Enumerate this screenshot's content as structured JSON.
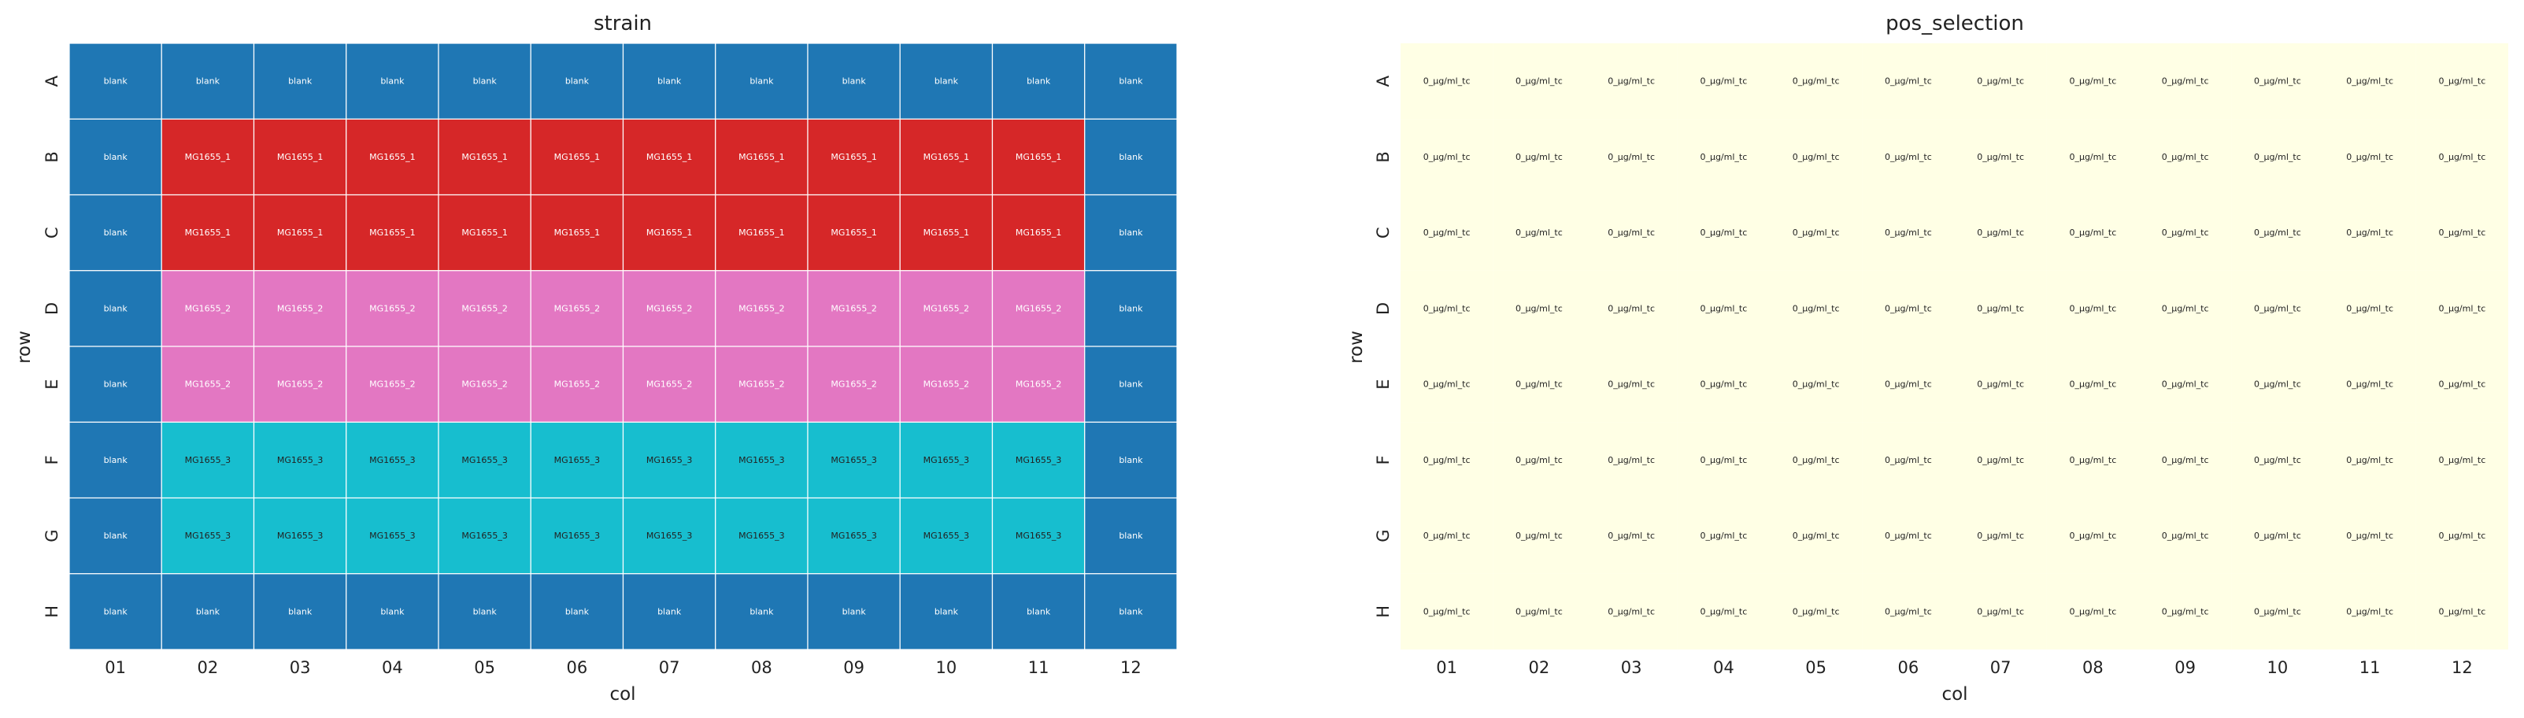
{
  "colors": {
    "blank": "#1f77b4",
    "MG1655_1": "#d62728",
    "MG1655_2": "#e377c2",
    "MG1655_3": "#17becf",
    "pos_cell": "#ffffe5",
    "grid_line": "#ffffff"
  },
  "text_colors": {
    "blank": "#ffffff",
    "MG1655_1": "#ffffff",
    "MG1655_2": "#ffffff",
    "MG1655_3": "#222222",
    "pos": "#222222"
  },
  "chart_data": [
    {
      "type": "heatmap",
      "title": "strain",
      "xlabel": "col",
      "ylabel": "row",
      "x_ticks": [
        "01",
        "02",
        "03",
        "04",
        "05",
        "06",
        "07",
        "08",
        "09",
        "10",
        "11",
        "12"
      ],
      "y_ticks": [
        "A",
        "B",
        "C",
        "D",
        "E",
        "F",
        "G",
        "H"
      ],
      "grid": true,
      "cells": [
        [
          "blank",
          "blank",
          "blank",
          "blank",
          "blank",
          "blank",
          "blank",
          "blank",
          "blank",
          "blank",
          "blank",
          "blank"
        ],
        [
          "blank",
          "MG1655_1",
          "MG1655_1",
          "MG1655_1",
          "MG1655_1",
          "MG1655_1",
          "MG1655_1",
          "MG1655_1",
          "MG1655_1",
          "MG1655_1",
          "MG1655_1",
          "blank"
        ],
        [
          "blank",
          "MG1655_1",
          "MG1655_1",
          "MG1655_1",
          "MG1655_1",
          "MG1655_1",
          "MG1655_1",
          "MG1655_1",
          "MG1655_1",
          "MG1655_1",
          "MG1655_1",
          "blank"
        ],
        [
          "blank",
          "MG1655_2",
          "MG1655_2",
          "MG1655_2",
          "MG1655_2",
          "MG1655_2",
          "MG1655_2",
          "MG1655_2",
          "MG1655_2",
          "MG1655_2",
          "MG1655_2",
          "blank"
        ],
        [
          "blank",
          "MG1655_2",
          "MG1655_2",
          "MG1655_2",
          "MG1655_2",
          "MG1655_2",
          "MG1655_2",
          "MG1655_2",
          "MG1655_2",
          "MG1655_2",
          "MG1655_2",
          "blank"
        ],
        [
          "blank",
          "MG1655_3",
          "MG1655_3",
          "MG1655_3",
          "MG1655_3",
          "MG1655_3",
          "MG1655_3",
          "MG1655_3",
          "MG1655_3",
          "MG1655_3",
          "MG1655_3",
          "blank"
        ],
        [
          "blank",
          "MG1655_3",
          "MG1655_3",
          "MG1655_3",
          "MG1655_3",
          "MG1655_3",
          "MG1655_3",
          "MG1655_3",
          "MG1655_3",
          "MG1655_3",
          "MG1655_3",
          "blank"
        ],
        [
          "blank",
          "blank",
          "blank",
          "blank",
          "blank",
          "blank",
          "blank",
          "blank",
          "blank",
          "blank",
          "blank",
          "blank"
        ]
      ]
    },
    {
      "type": "heatmap",
      "title": "pos_selection",
      "xlabel": "col",
      "ylabel": "row",
      "x_ticks": [
        "01",
        "02",
        "03",
        "04",
        "05",
        "06",
        "07",
        "08",
        "09",
        "10",
        "11",
        "12"
      ],
      "y_ticks": [
        "A",
        "B",
        "C",
        "D",
        "E",
        "F",
        "G",
        "H"
      ],
      "grid": false,
      "cells": [
        [
          "0_µg/ml_tc",
          "0_µg/ml_tc",
          "0_µg/ml_tc",
          "0_µg/ml_tc",
          "0_µg/ml_tc",
          "0_µg/ml_tc",
          "0_µg/ml_tc",
          "0_µg/ml_tc",
          "0_µg/ml_tc",
          "0_µg/ml_tc",
          "0_µg/ml_tc",
          "0_µg/ml_tc"
        ],
        [
          "0_µg/ml_tc",
          "0_µg/ml_tc",
          "0_µg/ml_tc",
          "0_µg/ml_tc",
          "0_µg/ml_tc",
          "0_µg/ml_tc",
          "0_µg/ml_tc",
          "0_µg/ml_tc",
          "0_µg/ml_tc",
          "0_µg/ml_tc",
          "0_µg/ml_tc",
          "0_µg/ml_tc"
        ],
        [
          "0_µg/ml_tc",
          "0_µg/ml_tc",
          "0_µg/ml_tc",
          "0_µg/ml_tc",
          "0_µg/ml_tc",
          "0_µg/ml_tc",
          "0_µg/ml_tc",
          "0_µg/ml_tc",
          "0_µg/ml_tc",
          "0_µg/ml_tc",
          "0_µg/ml_tc",
          "0_µg/ml_tc"
        ],
        [
          "0_µg/ml_tc",
          "0_µg/ml_tc",
          "0_µg/ml_tc",
          "0_µg/ml_tc",
          "0_µg/ml_tc",
          "0_µg/ml_tc",
          "0_µg/ml_tc",
          "0_µg/ml_tc",
          "0_µg/ml_tc",
          "0_µg/ml_tc",
          "0_µg/ml_tc",
          "0_µg/ml_tc"
        ],
        [
          "0_µg/ml_tc",
          "0_µg/ml_tc",
          "0_µg/ml_tc",
          "0_µg/ml_tc",
          "0_µg/ml_tc",
          "0_µg/ml_tc",
          "0_µg/ml_tc",
          "0_µg/ml_tc",
          "0_µg/ml_tc",
          "0_µg/ml_tc",
          "0_µg/ml_tc",
          "0_µg/ml_tc"
        ],
        [
          "0_µg/ml_tc",
          "0_µg/ml_tc",
          "0_µg/ml_tc",
          "0_µg/ml_tc",
          "0_µg/ml_tc",
          "0_µg/ml_tc",
          "0_µg/ml_tc",
          "0_µg/ml_tc",
          "0_µg/ml_tc",
          "0_µg/ml_tc",
          "0_µg/ml_tc",
          "0_µg/ml_tc"
        ],
        [
          "0_µg/ml_tc",
          "0_µg/ml_tc",
          "0_µg/ml_tc",
          "0_µg/ml_tc",
          "0_µg/ml_tc",
          "0_µg/ml_tc",
          "0_µg/ml_tc",
          "0_µg/ml_tc",
          "0_µg/ml_tc",
          "0_µg/ml_tc",
          "0_µg/ml_tc",
          "0_µg/ml_tc"
        ],
        [
          "0_µg/ml_tc",
          "0_µg/ml_tc",
          "0_µg/ml_tc",
          "0_µg/ml_tc",
          "0_µg/ml_tc",
          "0_µg/ml_tc",
          "0_µg/ml_tc",
          "0_µg/ml_tc",
          "0_µg/ml_tc",
          "0_µg/ml_tc",
          "0_µg/ml_tc",
          "0_µg/ml_tc"
        ]
      ]
    }
  ]
}
